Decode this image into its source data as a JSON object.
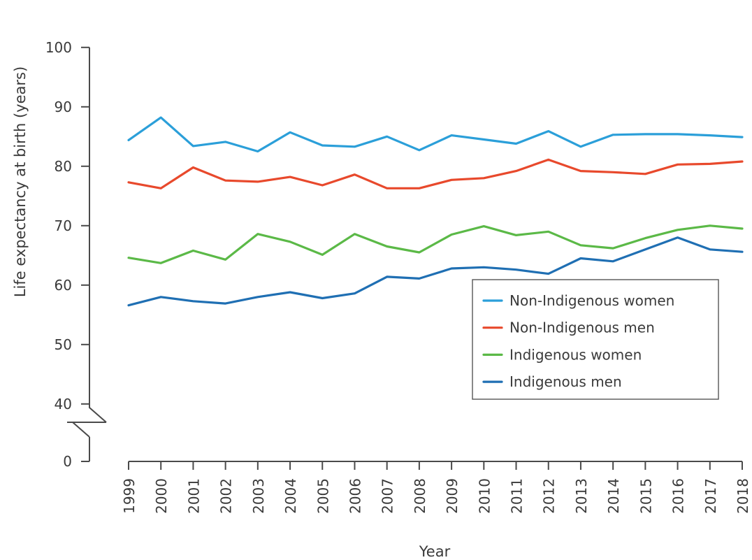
{
  "chart_data": {
    "type": "line",
    "xlabel": "Year",
    "ylabel": "Life expectancy at birth (years)",
    "x": [
      "1999",
      "2000",
      "2001",
      "2002",
      "2003",
      "2004",
      "2005",
      "2006",
      "2007",
      "2008",
      "2009",
      "2010",
      "2011",
      "2012",
      "2013",
      "2014",
      "2015",
      "2016",
      "2017",
      "2018"
    ],
    "y_ticks": [
      "0",
      "40",
      "50",
      "60",
      "70",
      "80",
      "90",
      "100"
    ],
    "ylim": [
      0,
      100
    ],
    "y_axis_break": [
      0,
      35
    ],
    "grid": false,
    "legend_placement": "lower-right",
    "series": [
      {
        "name": "Non-Indigenous women",
        "color": "#2b9fd9",
        "values": [
          84.4,
          88.2,
          83.4,
          84.1,
          82.5,
          85.7,
          83.5,
          83.3,
          85.0,
          82.7,
          85.2,
          84.5,
          83.8,
          85.9,
          83.3,
          85.3,
          85.4,
          85.4,
          85.2,
          84.9
        ]
      },
      {
        "name": "Non-Indigenous men",
        "color": "#e8492c",
        "values": [
          77.3,
          76.3,
          79.8,
          77.6,
          77.4,
          78.2,
          76.8,
          78.6,
          76.3,
          76.3,
          77.7,
          78.0,
          79.2,
          81.1,
          79.2,
          79.0,
          78.7,
          80.3,
          80.4,
          80.8
        ]
      },
      {
        "name": "Indigenous women",
        "color": "#5bb947",
        "values": [
          64.6,
          63.7,
          65.8,
          64.3,
          68.6,
          67.3,
          65.1,
          68.6,
          66.5,
          65.5,
          68.5,
          69.9,
          68.4,
          69.0,
          66.7,
          66.2,
          67.9,
          69.3,
          70.0,
          69.5
        ]
      },
      {
        "name": "Indigenous men",
        "color": "#1f6fb3",
        "values": [
          56.6,
          58.0,
          57.3,
          56.9,
          58.0,
          58.8,
          57.8,
          58.6,
          61.4,
          61.1,
          62.8,
          63.0,
          62.6,
          61.9,
          64.5,
          64.0,
          66.0,
          68.0,
          66.0,
          65.6
        ]
      }
    ]
  }
}
